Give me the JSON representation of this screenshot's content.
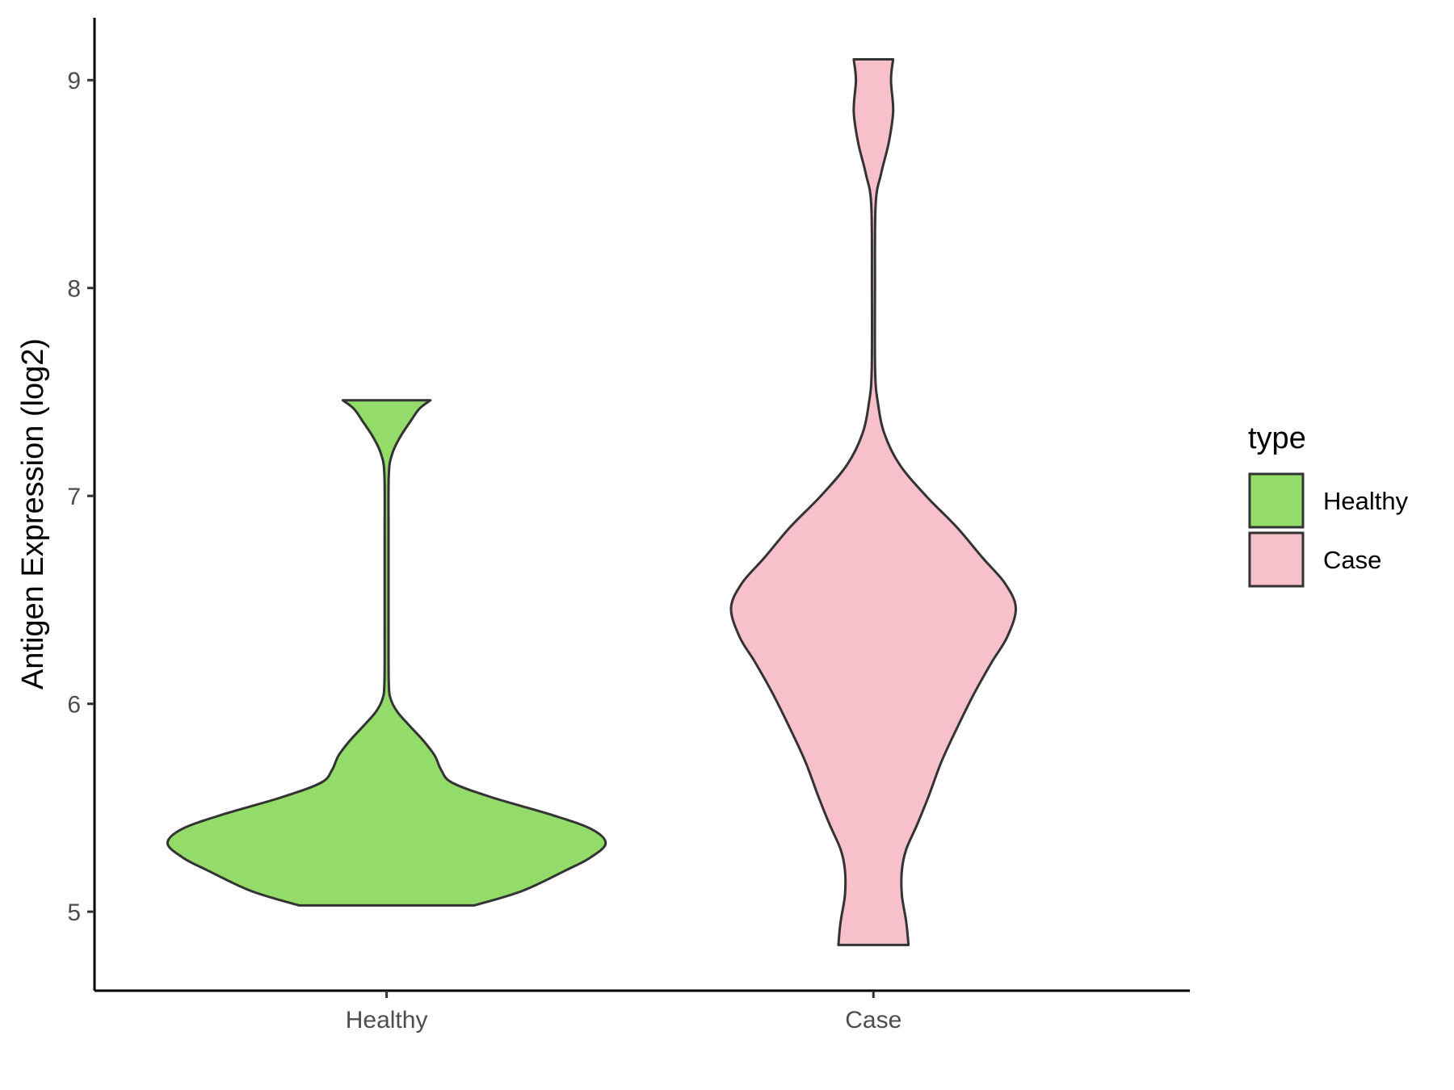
{
  "chart_data": {
    "type": "violin",
    "title": "",
    "xlabel": "",
    "ylabel": "Antigen Expression (log2)",
    "categories": [
      "Healthy",
      "Case"
    ],
    "ylim": [
      4.62,
      9.3
    ],
    "yticks": [
      5,
      6,
      7,
      8,
      9
    ],
    "grid": false,
    "legend": {
      "title": "type",
      "position": "right",
      "entries": [
        {
          "label": "Healthy",
          "color": "#93dc6a"
        },
        {
          "label": "Case",
          "color": "#f7c0cb"
        }
      ]
    },
    "series": [
      {
        "name": "Healthy",
        "color": "#93dc6a",
        "min": 5.03,
        "max": 7.46,
        "density_profile": [
          [
            5.03,
            0.4
          ],
          [
            5.1,
            0.62
          ],
          [
            5.2,
            0.82
          ],
          [
            5.26,
            0.93
          ],
          [
            5.33,
            1.0
          ],
          [
            5.4,
            0.93
          ],
          [
            5.47,
            0.74
          ],
          [
            5.55,
            0.48
          ],
          [
            5.62,
            0.3
          ],
          [
            5.68,
            0.25
          ],
          [
            5.75,
            0.22
          ],
          [
            5.82,
            0.17
          ],
          [
            5.9,
            0.1
          ],
          [
            5.96,
            0.05
          ],
          [
            6.02,
            0.02
          ],
          [
            6.1,
            0.01
          ],
          [
            6.4,
            0.009
          ],
          [
            6.8,
            0.009
          ],
          [
            7.1,
            0.01
          ],
          [
            7.2,
            0.025
          ],
          [
            7.28,
            0.06
          ],
          [
            7.36,
            0.11
          ],
          [
            7.42,
            0.15
          ],
          [
            7.46,
            0.2
          ]
        ]
      },
      {
        "name": "Case",
        "color": "#f7c0cb",
        "min": 4.84,
        "max": 9.1,
        "density_profile": [
          [
            4.84,
            0.16
          ],
          [
            4.95,
            0.15
          ],
          [
            5.08,
            0.13
          ],
          [
            5.2,
            0.13
          ],
          [
            5.3,
            0.15
          ],
          [
            5.42,
            0.2
          ],
          [
            5.55,
            0.25
          ],
          [
            5.72,
            0.31
          ],
          [
            5.88,
            0.38
          ],
          [
            6.05,
            0.46
          ],
          [
            6.2,
            0.54
          ],
          [
            6.32,
            0.61
          ],
          [
            6.46,
            0.65
          ],
          [
            6.58,
            0.6
          ],
          [
            6.7,
            0.5
          ],
          [
            6.85,
            0.38
          ],
          [
            7.0,
            0.24
          ],
          [
            7.15,
            0.12
          ],
          [
            7.3,
            0.05
          ],
          [
            7.45,
            0.02
          ],
          [
            7.6,
            0.008
          ],
          [
            8.0,
            0.007
          ],
          [
            8.4,
            0.01
          ],
          [
            8.55,
            0.035
          ],
          [
            8.7,
            0.07
          ],
          [
            8.85,
            0.09
          ],
          [
            9.0,
            0.08
          ],
          [
            9.1,
            0.09
          ]
        ]
      }
    ]
  }
}
